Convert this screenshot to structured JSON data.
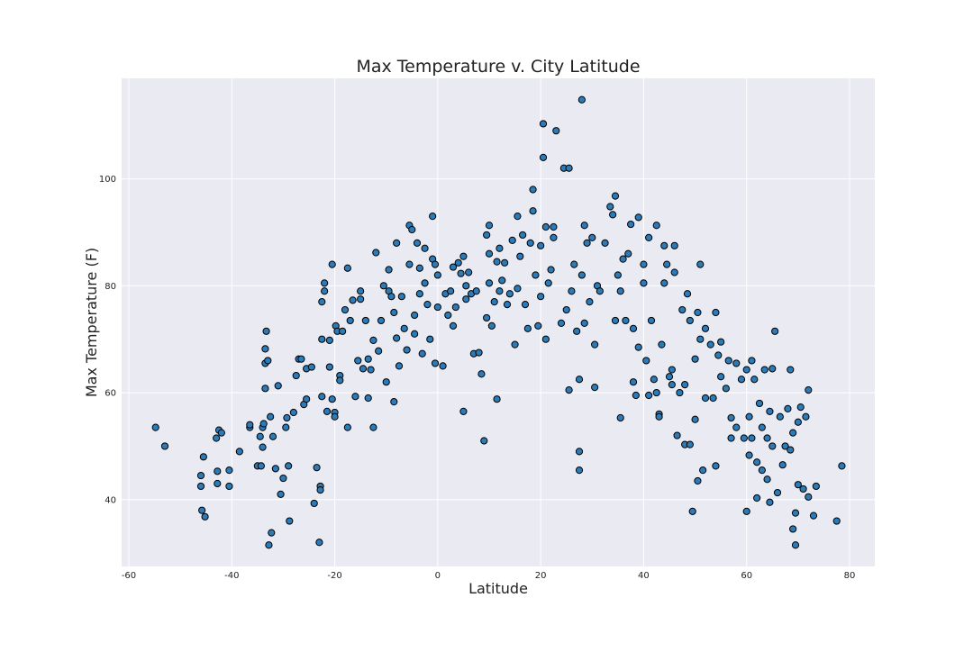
{
  "chart_data": {
    "type": "scatter",
    "title": "Max Temperature v. City Latitude",
    "x_label": "Latitude",
    "y_label": "Max Temperature (F)",
    "xlim": [
      -61.4,
      84.9
    ],
    "ylim": [
      27.5,
      118.8
    ],
    "xticks": [
      -60,
      -40,
      -20,
      0,
      20,
      40,
      60,
      80
    ],
    "yticks": [
      40,
      60,
      80,
      100
    ],
    "grid": true,
    "color": "#2b7bb9",
    "edgecolor": "#000000",
    "x": [
      -54.8,
      -53,
      -46,
      -46,
      -45.5,
      -45.8,
      -45.2,
      -43,
      -42.5,
      -42,
      -42.8,
      -42.8,
      -40.5,
      -40.5,
      -38.5,
      -36.5,
      -36.5,
      -35,
      -34.5,
      -34.3,
      -34,
      -34,
      -33.8,
      -33.5,
      -33.5,
      -33.5,
      -33.3,
      -33,
      -32.5,
      -32.8,
      -32.3,
      -32,
      -31.5,
      -31,
      -30.5,
      -30,
      -29.5,
      -29.3,
      -29,
      -28.8,
      -28,
      -27.5,
      -27,
      -26.5,
      -26,
      -25.5,
      -25.5,
      -24.5,
      -24,
      -23.5,
      -23,
      -22.8,
      -22.8,
      -22.5,
      -22.5,
      -22.5,
      -22,
      -22,
      -21.5,
      -21,
      -21,
      -20.5,
      -20.5,
      -20,
      -20,
      -19.8,
      -19.5,
      -19,
      -19,
      -18.5,
      -18,
      -17.5,
      -17.5,
      -17,
      -16.5,
      -16,
      -15.5,
      -15,
      -15,
      -14.5,
      -14,
      -13.5,
      -13.5,
      -13,
      -12.5,
      -12.5,
      -12,
      -11.5,
      -11,
      -10.5,
      -10,
      -9.5,
      -9.5,
      -9,
      -8.5,
      -8.5,
      -8,
      -8,
      -7.5,
      -7,
      -6.5,
      -6,
      -5.5,
      -5.5,
      -5,
      -4.5,
      -4.5,
      -4,
      -3.5,
      -3.5,
      -3,
      -2.5,
      -2.5,
      -2,
      -1.5,
      -1,
      -1,
      -0.5,
      -0.5,
      0,
      0,
      1,
      1.5,
      2,
      2.5,
      3,
      3,
      3.5,
      4,
      4.5,
      5,
      5,
      5.5,
      5.5,
      6,
      6.5,
      7,
      7.5,
      8,
      8.5,
      9,
      9.5,
      9.5,
      10,
      10,
      10,
      10.5,
      11,
      11.5,
      11.5,
      12,
      12,
      12.5,
      13,
      13.5,
      14,
      14.5,
      15,
      15.5,
      15.5,
      16,
      16.5,
      17,
      17.5,
      18,
      18.5,
      18.5,
      19,
      19.5,
      20,
      20,
      20.5,
      20.5,
      21,
      21,
      21.5,
      22,
      22.5,
      22.5,
      23,
      24,
      24.5,
      25,
      25.5,
      25.5,
      26,
      26.5,
      27,
      27.5,
      27.5,
      27.5,
      28,
      28,
      28.5,
      28.5,
      29,
      29.5,
      30,
      30.5,
      30.5,
      31,
      31.5,
      32.5,
      33.5,
      34,
      34.5,
      34.5,
      35,
      35.5,
      35.5,
      36,
      36.5,
      37,
      37.5,
      38,
      38,
      38.5,
      39,
      39,
      40,
      40,
      40.5,
      41,
      41,
      41.5,
      42,
      42.5,
      42.5,
      43,
      43,
      43.5,
      44,
      44,
      44.5,
      45,
      45.5,
      45.5,
      46,
      46,
      46.5,
      47,
      47.5,
      48,
      48,
      48.5,
      49,
      49,
      49.5,
      50,
      50,
      50.5,
      50.5,
      51,
      51,
      51.5,
      52,
      52,
      53,
      53.5,
      54,
      54,
      54.5,
      55,
      55,
      56,
      56.5,
      57,
      57,
      58,
      58,
      59,
      59.5,
      60,
      60,
      60.5,
      60.5,
      61,
      61,
      61.5,
      62,
      62,
      62.5,
      63,
      63,
      63.5,
      64,
      64,
      64.5,
      64.5,
      65,
      65,
      65.5,
      66,
      66.5,
      67,
      67.5,
      68,
      68.5,
      68.5,
      69,
      69,
      69.5,
      69.5,
      70,
      70,
      70.5,
      71,
      71.5,
      72,
      72,
      73,
      73.5,
      77.5,
      78.5
    ],
    "values": [
      53.5,
      50,
      44.5,
      42.5,
      48,
      38,
      36.8,
      51.5,
      53,
      52.5,
      45.3,
      43,
      45.5,
      42.5,
      49,
      53.5,
      54,
      46.3,
      51.8,
      46.3,
      49.8,
      53.5,
      54.2,
      60.8,
      65.5,
      68.2,
      71.5,
      66,
      55.5,
      31.5,
      33.8,
      51.8,
      45.8,
      61.3,
      41,
      44,
      53.5,
      55.3,
      46.3,
      36,
      56.3,
      63.2,
      66.3,
      66.3,
      57.8,
      58.8,
      64.5,
      64.8,
      39.3,
      46,
      32,
      42.5,
      41.8,
      59.3,
      77,
      70,
      79,
      80.5,
      56.5,
      64.8,
      69.8,
      84,
      58.8,
      56.3,
      55.5,
      72.5,
      71.5,
      63.2,
      62.3,
      71.5,
      75.5,
      53.5,
      83.3,
      73.5,
      77.3,
      59.3,
      66,
      77.5,
      79,
      64.5,
      73.5,
      59,
      66.3,
      64.3,
      53.5,
      69.8,
      86.2,
      67.8,
      73.5,
      80,
      62,
      79,
      83,
      78,
      75,
      58.3,
      70.2,
      88,
      65,
      78,
      72,
      68,
      91.3,
      84,
      90.5,
      71,
      74.5,
      88,
      78.5,
      83.3,
      67.3,
      87,
      80.5,
      76.5,
      70,
      93,
      85,
      65.5,
      84,
      82,
      76,
      65,
      78.5,
      74.5,
      79,
      72.5,
      83.5,
      76,
      84.3,
      82.3,
      85.5,
      56.5,
      77.5,
      80,
      82.5,
      78.5,
      67.3,
      79,
      67.5,
      63.5,
      51,
      89.5,
      74,
      91.3,
      86,
      80.5,
      72.5,
      77,
      84.5,
      58.8,
      87,
      79,
      81,
      84.3,
      76.5,
      78.5,
      88.5,
      69,
      79.5,
      93,
      85.5,
      89.5,
      76.5,
      72,
      88,
      94,
      98,
      82,
      72.5,
      78,
      87.5,
      104,
      110.3,
      70,
      91,
      80.5,
      83,
      89,
      91,
      109,
      73,
      102,
      75.5,
      102,
      60.5,
      79,
      84,
      71.5,
      49,
      45.5,
      62.5,
      114.8,
      82,
      91.3,
      73,
      88,
      77,
      89,
      69,
      61,
      80,
      79,
      88,
      94.8,
      93.3,
      96.8,
      73.5,
      82,
      55.3,
      79,
      85,
      73.5,
      86,
      91.5,
      72,
      62,
      59.5,
      68.5,
      92.8,
      84,
      80.5,
      66,
      59.5,
      89,
      73.5,
      62.5,
      91.3,
      60,
      56,
      55.5,
      69,
      80.5,
      87.5,
      84,
      63,
      64.3,
      61.5,
      87.5,
      82.5,
      52,
      60,
      75.5,
      61.5,
      50.3,
      78.5,
      73.5,
      50.3,
      37.8,
      66.3,
      55,
      43.5,
      75,
      70,
      84,
      45.5,
      59,
      72,
      69,
      59,
      46.3,
      75,
      67,
      63,
      69.5,
      60.8,
      66,
      51.5,
      55.3,
      53.5,
      65.5,
      62.5,
      51.5,
      64.3,
      37.8,
      55.5,
      48.3,
      66,
      51.5,
      62.5,
      40.3,
      47,
      58,
      53.5,
      45.5,
      64.3,
      43.8,
      51.5,
      56.5,
      39.5,
      64.5,
      50,
      71.5,
      41.3,
      55.5,
      46.5,
      50,
      57,
      49.3,
      64.3,
      52.5,
      34.5,
      37.5,
      31.5,
      42.8,
      54.5,
      57.3,
      42,
      55.5,
      40.5,
      60.5,
      37,
      42.5,
      36,
      46.3
    ]
  }
}
